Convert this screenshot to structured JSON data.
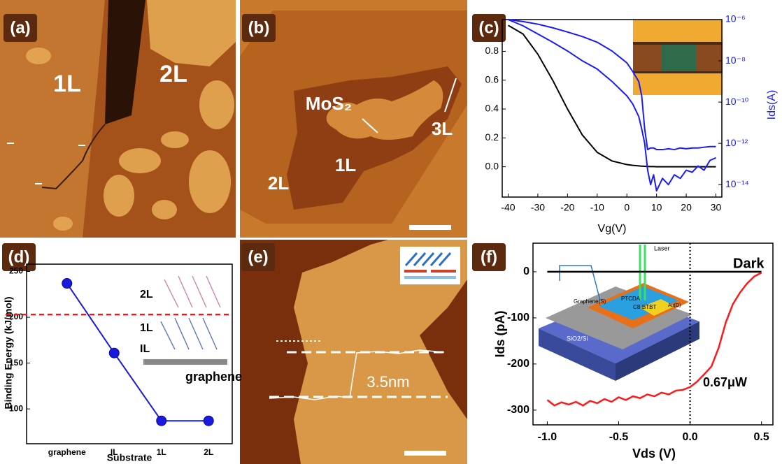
{
  "panel_labels": [
    "(a)",
    "(b)",
    "(c)",
    "(d)",
    "(e)",
    "(f)"
  ],
  "images": {
    "a": {
      "labels": [
        "1L",
        "2L"
      ]
    },
    "b": {
      "labels": [
        "MoS₂",
        "3L",
        "1L",
        "2L"
      ]
    },
    "e": {
      "labels": [
        "3.5nm"
      ]
    }
  },
  "chart_data": [
    {
      "type": "line",
      "xlabel": "Vg(V)",
      "y2label": "Ids(A)",
      "y2scale": "log",
      "xlim": [
        -42,
        32
      ],
      "ylim": [
        -0.21,
        1.02
      ],
      "y2lim": [
        2.5e-15,
        1e-06
      ],
      "xticks": [
        -40,
        -30,
        -20,
        -10,
        0,
        10,
        20,
        30
      ],
      "yticks": [
        {
          "value": 0,
          "label": "0.0"
        },
        0.2,
        0.4,
        0.6,
        0.8
      ],
      "y2ticks": [
        {
          "value": 1e-14,
          "label": "10⁻¹⁴"
        },
        {
          "value": 1e-12,
          "label": "10⁻¹²"
        },
        {
          "value": 1e-10,
          "label": "10⁻¹⁰"
        },
        {
          "value": 1e-08,
          "label": "10⁻⁸"
        },
        {
          "value": 1e-06,
          "label": "10⁻⁶"
        }
      ],
      "x": [
        -40,
        -35,
        -30,
        -25,
        -20,
        -15,
        -10,
        -5,
        0,
        2,
        4,
        5,
        6,
        7,
        8,
        9,
        10,
        12,
        14,
        16,
        18,
        20,
        22,
        24,
        26,
        28,
        30
      ],
      "series": [
        {
          "color": "#000000",
          "values": [
            0.98,
            0.92,
            0.78,
            0.6,
            0.4,
            0.22,
            0.1,
            0.04,
            0.015,
            0.01,
            0.006,
            0.004,
            0.003,
            0.002,
            0.001,
            0.001,
            0,
            0,
            0,
            0,
            0,
            0,
            0,
            0,
            0,
            0,
            0
          ]
        },
        {
          "color": "#1a1aff",
          "axis": "y2",
          "values": [
            1e-06,
            8e-07,
            6e-07,
            4e-07,
            2.5e-07,
            1.5e-07,
            8e-08,
            3e-08,
            8e-09,
            3e-09,
            1e-09,
            2e-10,
            5e-12,
            5e-13,
            6e-13,
            6e-13,
            5e-13,
            5e-13,
            5.5e-13,
            5e-13,
            6e-13,
            5.5e-13,
            6e-13,
            6e-13,
            6.5e-13,
            7e-13,
            7e-13
          ]
        },
        {
          "color": "#1a1aff",
          "axis": "y2",
          "values": [
            1e-06,
            5e-07,
            2e-07,
            8e-08,
            3e-08,
            1e-08,
            4e-09,
            1e-09,
            2e-10,
            8e-11,
            2e-11,
            5e-12,
            1e-12,
            5e-14,
            1e-14,
            3e-14,
            5e-15,
            2e-14,
            1e-14,
            3e-14,
            2e-14,
            5e-14,
            4e-14,
            8e-14,
            5e-14,
            1.5e-13,
            2e-13
          ]
        }
      ]
    },
    {
      "type": "line",
      "markers": true,
      "xlabel": "Substrate",
      "ylabel": "Binding Energy (kJ/mol)",
      "categories": [
        "graphene",
        "IL",
        "1L",
        "2L"
      ],
      "ylim": [
        62,
        258
      ],
      "yticks": [
        100,
        150,
        200,
        250
      ],
      "hline": 203,
      "hline_color": "#e02020",
      "inset_labels": [
        "2L",
        "1L",
        "IL",
        "graphene"
      ],
      "series": [
        {
          "color": "#1a1adf",
          "values": [
            237,
            161,
            87,
            87
          ]
        }
      ]
    },
    {
      "type": "line",
      "xlabel": "Vds (V)",
      "ylabel": "Ids (pA)",
      "xlim": [
        -1.1,
        0.58
      ],
      "ylim": [
        -332,
        62
      ],
      "xticks": [
        {
          "value": -1,
          "label": "-1.0"
        },
        {
          "value": -0.5,
          "label": "-0.5"
        },
        {
          "value": 0,
          "label": "0.0"
        },
        0.5
      ],
      "yticks": [
        -300,
        -200,
        -100,
        0
      ],
      "vline": 0,
      "inset_labels": [
        "Laser",
        "Graphene(S)",
        "PTCDA",
        "C8-BTBT",
        "Au(D)",
        "SiO2/Si"
      ],
      "x": [
        -1,
        -0.95,
        -0.9,
        -0.85,
        -0.8,
        -0.75,
        -0.7,
        -0.65,
        -0.6,
        -0.55,
        -0.5,
        -0.45,
        -0.4,
        -0.35,
        -0.3,
        -0.25,
        -0.2,
        -0.15,
        -0.1,
        -0.05,
        0,
        0.05,
        0.1,
        0.15,
        0.2,
        0.25,
        0.3,
        0.35,
        0.4,
        0.45,
        0.5
      ],
      "series": [
        {
          "name": "Dark",
          "color": "#000000",
          "values": [
            0,
            0,
            0,
            0,
            0,
            0,
            0,
            0,
            0,
            0,
            0,
            0,
            0,
            0,
            0,
            0,
            0,
            0,
            0,
            0,
            0,
            0,
            0,
            0,
            0,
            0,
            0,
            0,
            0,
            0,
            0
          ]
        },
        {
          "name": "0.67μW",
          "color": "#ff1a1a",
          "values": [
            -278,
            -290,
            -283,
            -288,
            -282,
            -290,
            -280,
            -285,
            -276,
            -282,
            -272,
            -278,
            -270,
            -274,
            -266,
            -270,
            -262,
            -266,
            -258,
            -256,
            -250,
            -238,
            -222,
            -205,
            -165,
            -110,
            -70,
            -45,
            -25,
            -10,
            -2
          ]
        }
      ]
    }
  ]
}
